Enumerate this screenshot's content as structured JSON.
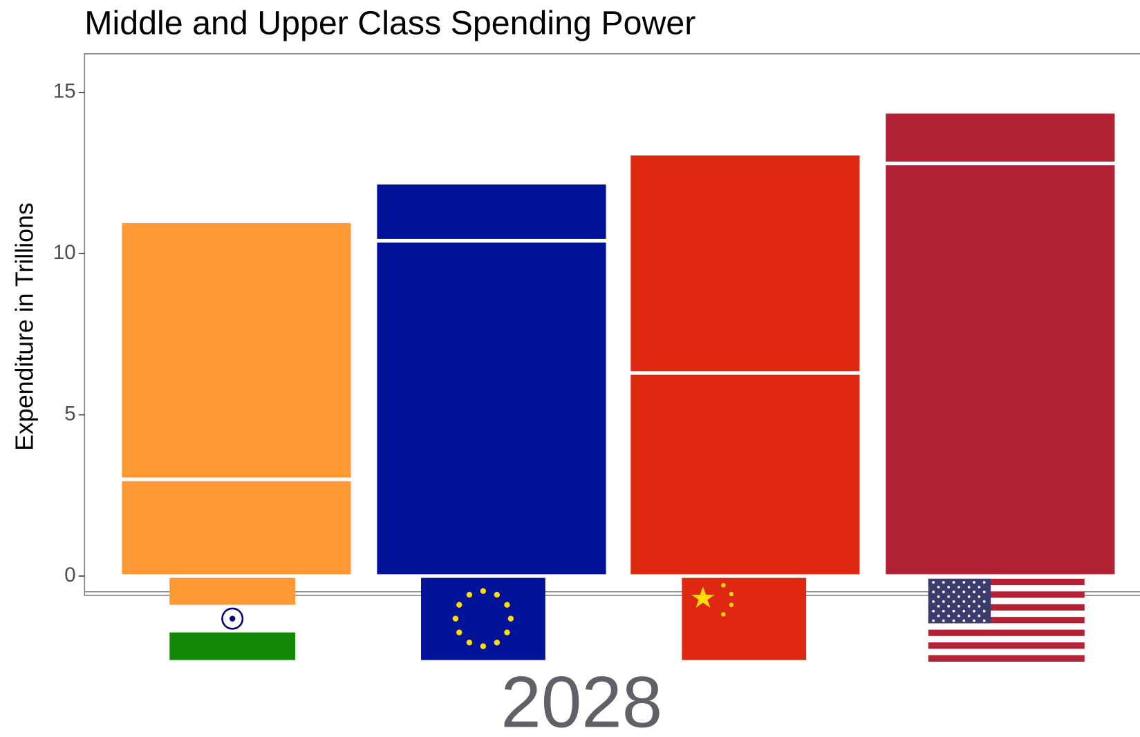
{
  "chart_data": {
    "type": "stacked_bar",
    "title": "Middle and Upper Class Spending Power",
    "ylabel": "Expenditure in Trillions",
    "annotation": "2028",
    "categories": [
      null,
      null,
      null,
      null
    ],
    "colors": [
      "#fe9933",
      "#001399",
      "#de2910",
      "#b22234"
    ],
    "series": [
      {
        "values": [
          3.0,
          10.4,
          6.3,
          12.8
        ]
      },
      {
        "values": [
          8.0,
          1.8,
          6.8,
          1.6
        ]
      }
    ],
    "ylim": [
      -0.6,
      16.2
    ],
    "yticks": [
      0,
      5,
      10,
      15
    ],
    "grid": false
  }
}
